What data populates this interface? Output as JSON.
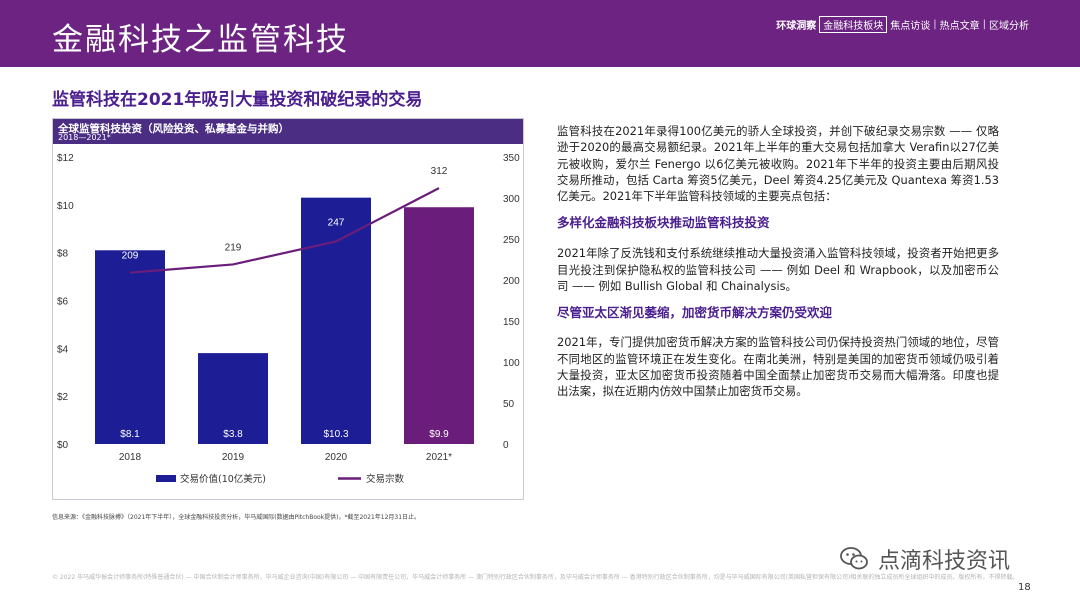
{
  "header": {
    "title": "金融科技之监管科技",
    "nav": [
      "环球洞察",
      "金融科技板块",
      "焦点访谈",
      "热点文章",
      "区域分析"
    ],
    "active_nav": "金融科技板块"
  },
  "subheading": "监管科技在2021年吸引大量投资和破纪录的交易",
  "chart_data": {
    "type": "bar",
    "title": "全球监管科技投资（风险投资、私募基金与并购）",
    "subtitle": "2018—2021*",
    "categories": [
      "2018",
      "2019",
      "2020",
      "2021*"
    ],
    "series": [
      {
        "name": "交易价值(10亿美元)",
        "type": "bar",
        "axis": "left",
        "values": [
          8.1,
          3.8,
          10.3,
          9.9
        ],
        "labels": [
          "$8.1",
          "$3.8",
          "$10.3",
          "$9.9"
        ],
        "colors": [
          "#1d1d96",
          "#1d1d96",
          "#1d1d96",
          "#6a1d7a"
        ]
      },
      {
        "name": "交易宗数",
        "type": "line",
        "axis": "right",
        "values": [
          209,
          219,
          247,
          312
        ],
        "labels": [
          "209",
          "219",
          "247",
          "312"
        ],
        "color": "#6a1d7a"
      }
    ],
    "y_left": {
      "ylim": [
        0,
        12
      ],
      "ticks": [
        0,
        2,
        4,
        6,
        8,
        10,
        12
      ],
      "tick_labels": [
        "$0",
        "$2",
        "$4",
        "$6",
        "$8",
        "$10",
        "$12"
      ]
    },
    "y_right": {
      "ylim": [
        0,
        350
      ],
      "ticks": [
        0,
        50,
        100,
        150,
        200,
        250,
        300,
        350
      ],
      "tick_labels": [
        "0",
        "50",
        "100",
        "150",
        "200",
        "250",
        "300",
        "350"
      ]
    },
    "legend_position": "bottom",
    "grid": false
  },
  "source_note": "信息来源：《金融科技脉搏》（2021年下半年），全球金融科技投资分析，毕马威国际(数据由PitchBook提供)，*截至2021年12月31日止。",
  "right_text": {
    "para1": "监管科技在2021年录得100亿美元的骄人全球投资，并创下破纪录交易宗数 —— 仅略逊于2020的最高交易额纪录。2021年上半年的重大交易包括加拿大 Verafin以27亿美元被收购，爱尔兰 Fenergo 以6亿美元被收购。2021年下半年的投资主要由后期风投交易所推动，包括 Carta 筹资5亿美元，Deel 筹资4.25亿美元及 Quantexa 筹资1.53亿美元。2021年下半年监管科技领域的主要亮点包括：",
    "heading1": "多样化金融科技板块推动监管科技投资",
    "para2": "2021年除了反洗钱和支付系统继续推动大量投资涌入监管科技领域，投资者开始把更多目光投注到保护隐私权的监管科技公司 —— 例如 Deel 和 Wrapbook，以及加密币公司 —— 例如 Bullish Global 和 Chainalysis。",
    "heading2": "尽管亚太区渐见萎缩，加密货币解决方案仍受欢迎",
    "para3": "2021年，专门提供加密货币解决方案的监管科技公司仍保持投资热门领域的地位，尽管不同地区的监管环境正在发生变化。在南北美洲，特别是美国的加密货币领域仍吸引着大量投资，亚太区加密货币投资随着中国全面禁止加密货币交易而大幅滑落。印度也提出法案，拟在近期内仿效中国禁止加密货币交易。"
  },
  "footer": {
    "copyright": "© 2022 毕马威华振会计师事务所(特殊普通合伙) — 中国合伙制会计师事务所，毕马威企业咨询(中国)有限公司 — 中国有限责任公司，毕马威会计师事务所 — 澳门特别行政区合伙制事务所，及毕马威会计师事务所 — 香港特别行政区合伙制事务所，均是与毕马威国际有限公司(英国私营担保有限公司)相关联的独立成员所全球组织中的成员。版权所有，不得转载。",
    "page_number": "18"
  },
  "watermark": "点滴科技资讯"
}
